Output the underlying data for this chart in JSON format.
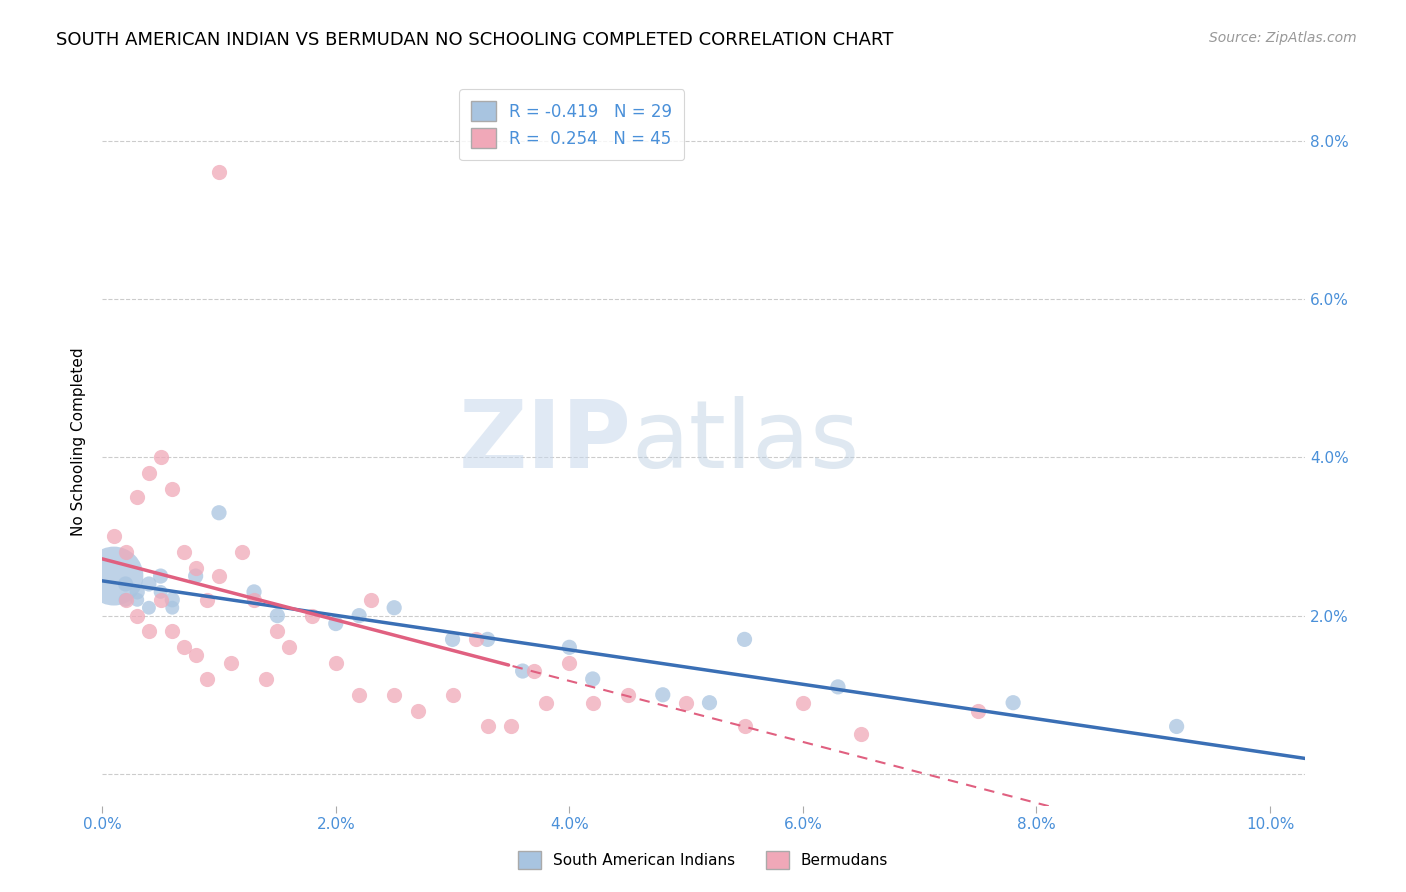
{
  "title": "SOUTH AMERICAN INDIAN VS BERMUDAN NO SCHOOLING COMPLETED CORRELATION CHART",
  "source": "Source: ZipAtlas.com",
  "ylabel": "No Schooling Completed",
  "x_ticks": [
    0.0,
    0.02,
    0.04,
    0.06,
    0.08,
    0.1
  ],
  "y_ticks": [
    0.0,
    0.02,
    0.04,
    0.06,
    0.08
  ],
  "xlim": [
    0.0,
    0.103
  ],
  "ylim": [
    -0.004,
    0.088
  ],
  "blue_R": "-0.419",
  "blue_N": "29",
  "pink_R": "0.254",
  "pink_N": "45",
  "blue_color": "#a8c4e0",
  "pink_color": "#f0a8b8",
  "blue_line_color": "#3a6fb5",
  "pink_line_color": "#e06080",
  "legend_label_blue": "South American Indians",
  "legend_label_pink": "Bermudans",
  "watermark_zip": "ZIP",
  "watermark_atlas": "atlas",
  "blue_scatter_x": [
    0.001,
    0.002,
    0.002,
    0.003,
    0.003,
    0.004,
    0.004,
    0.005,
    0.005,
    0.006,
    0.006,
    0.008,
    0.01,
    0.013,
    0.015,
    0.02,
    0.022,
    0.025,
    0.03,
    0.033,
    0.036,
    0.04,
    0.042,
    0.048,
    0.052,
    0.055,
    0.063,
    0.078,
    0.092
  ],
  "blue_scatter_y": [
    0.025,
    0.024,
    0.022,
    0.023,
    0.022,
    0.024,
    0.021,
    0.025,
    0.023,
    0.022,
    0.021,
    0.025,
    0.033,
    0.023,
    0.02,
    0.019,
    0.02,
    0.021,
    0.017,
    0.017,
    0.013,
    0.016,
    0.012,
    0.01,
    0.009,
    0.017,
    0.011,
    0.009,
    0.006
  ],
  "blue_scatter_size": [
    1800,
    120,
    100,
    120,
    100,
    120,
    100,
    120,
    100,
    120,
    100,
    120,
    120,
    120,
    120,
    120,
    120,
    120,
    120,
    120,
    120,
    120,
    120,
    120,
    120,
    120,
    120,
    120,
    120
  ],
  "pink_scatter_x": [
    0.001,
    0.002,
    0.002,
    0.003,
    0.003,
    0.004,
    0.004,
    0.005,
    0.005,
    0.006,
    0.006,
    0.007,
    0.007,
    0.008,
    0.008,
    0.009,
    0.009,
    0.01,
    0.01,
    0.011,
    0.012,
    0.013,
    0.014,
    0.015,
    0.016,
    0.018,
    0.02,
    0.022,
    0.023,
    0.025,
    0.027,
    0.03,
    0.032,
    0.033,
    0.035,
    0.037,
    0.038,
    0.04,
    0.042,
    0.045,
    0.05,
    0.055,
    0.06,
    0.065,
    0.075
  ],
  "pink_scatter_y": [
    0.03,
    0.028,
    0.022,
    0.035,
    0.02,
    0.038,
    0.018,
    0.04,
    0.022,
    0.036,
    0.018,
    0.028,
    0.016,
    0.026,
    0.015,
    0.022,
    0.012,
    0.076,
    0.025,
    0.014,
    0.028,
    0.022,
    0.012,
    0.018,
    0.016,
    0.02,
    0.014,
    0.01,
    0.022,
    0.01,
    0.008,
    0.01,
    0.017,
    0.006,
    0.006,
    0.013,
    0.009,
    0.014,
    0.009,
    0.01,
    0.009,
    0.006,
    0.009,
    0.005,
    0.008
  ],
  "grid_color": "#cccccc",
  "background_color": "#ffffff",
  "title_fontsize": 13,
  "axis_label_fontsize": 11,
  "tick_fontsize": 11,
  "source_fontsize": 10
}
